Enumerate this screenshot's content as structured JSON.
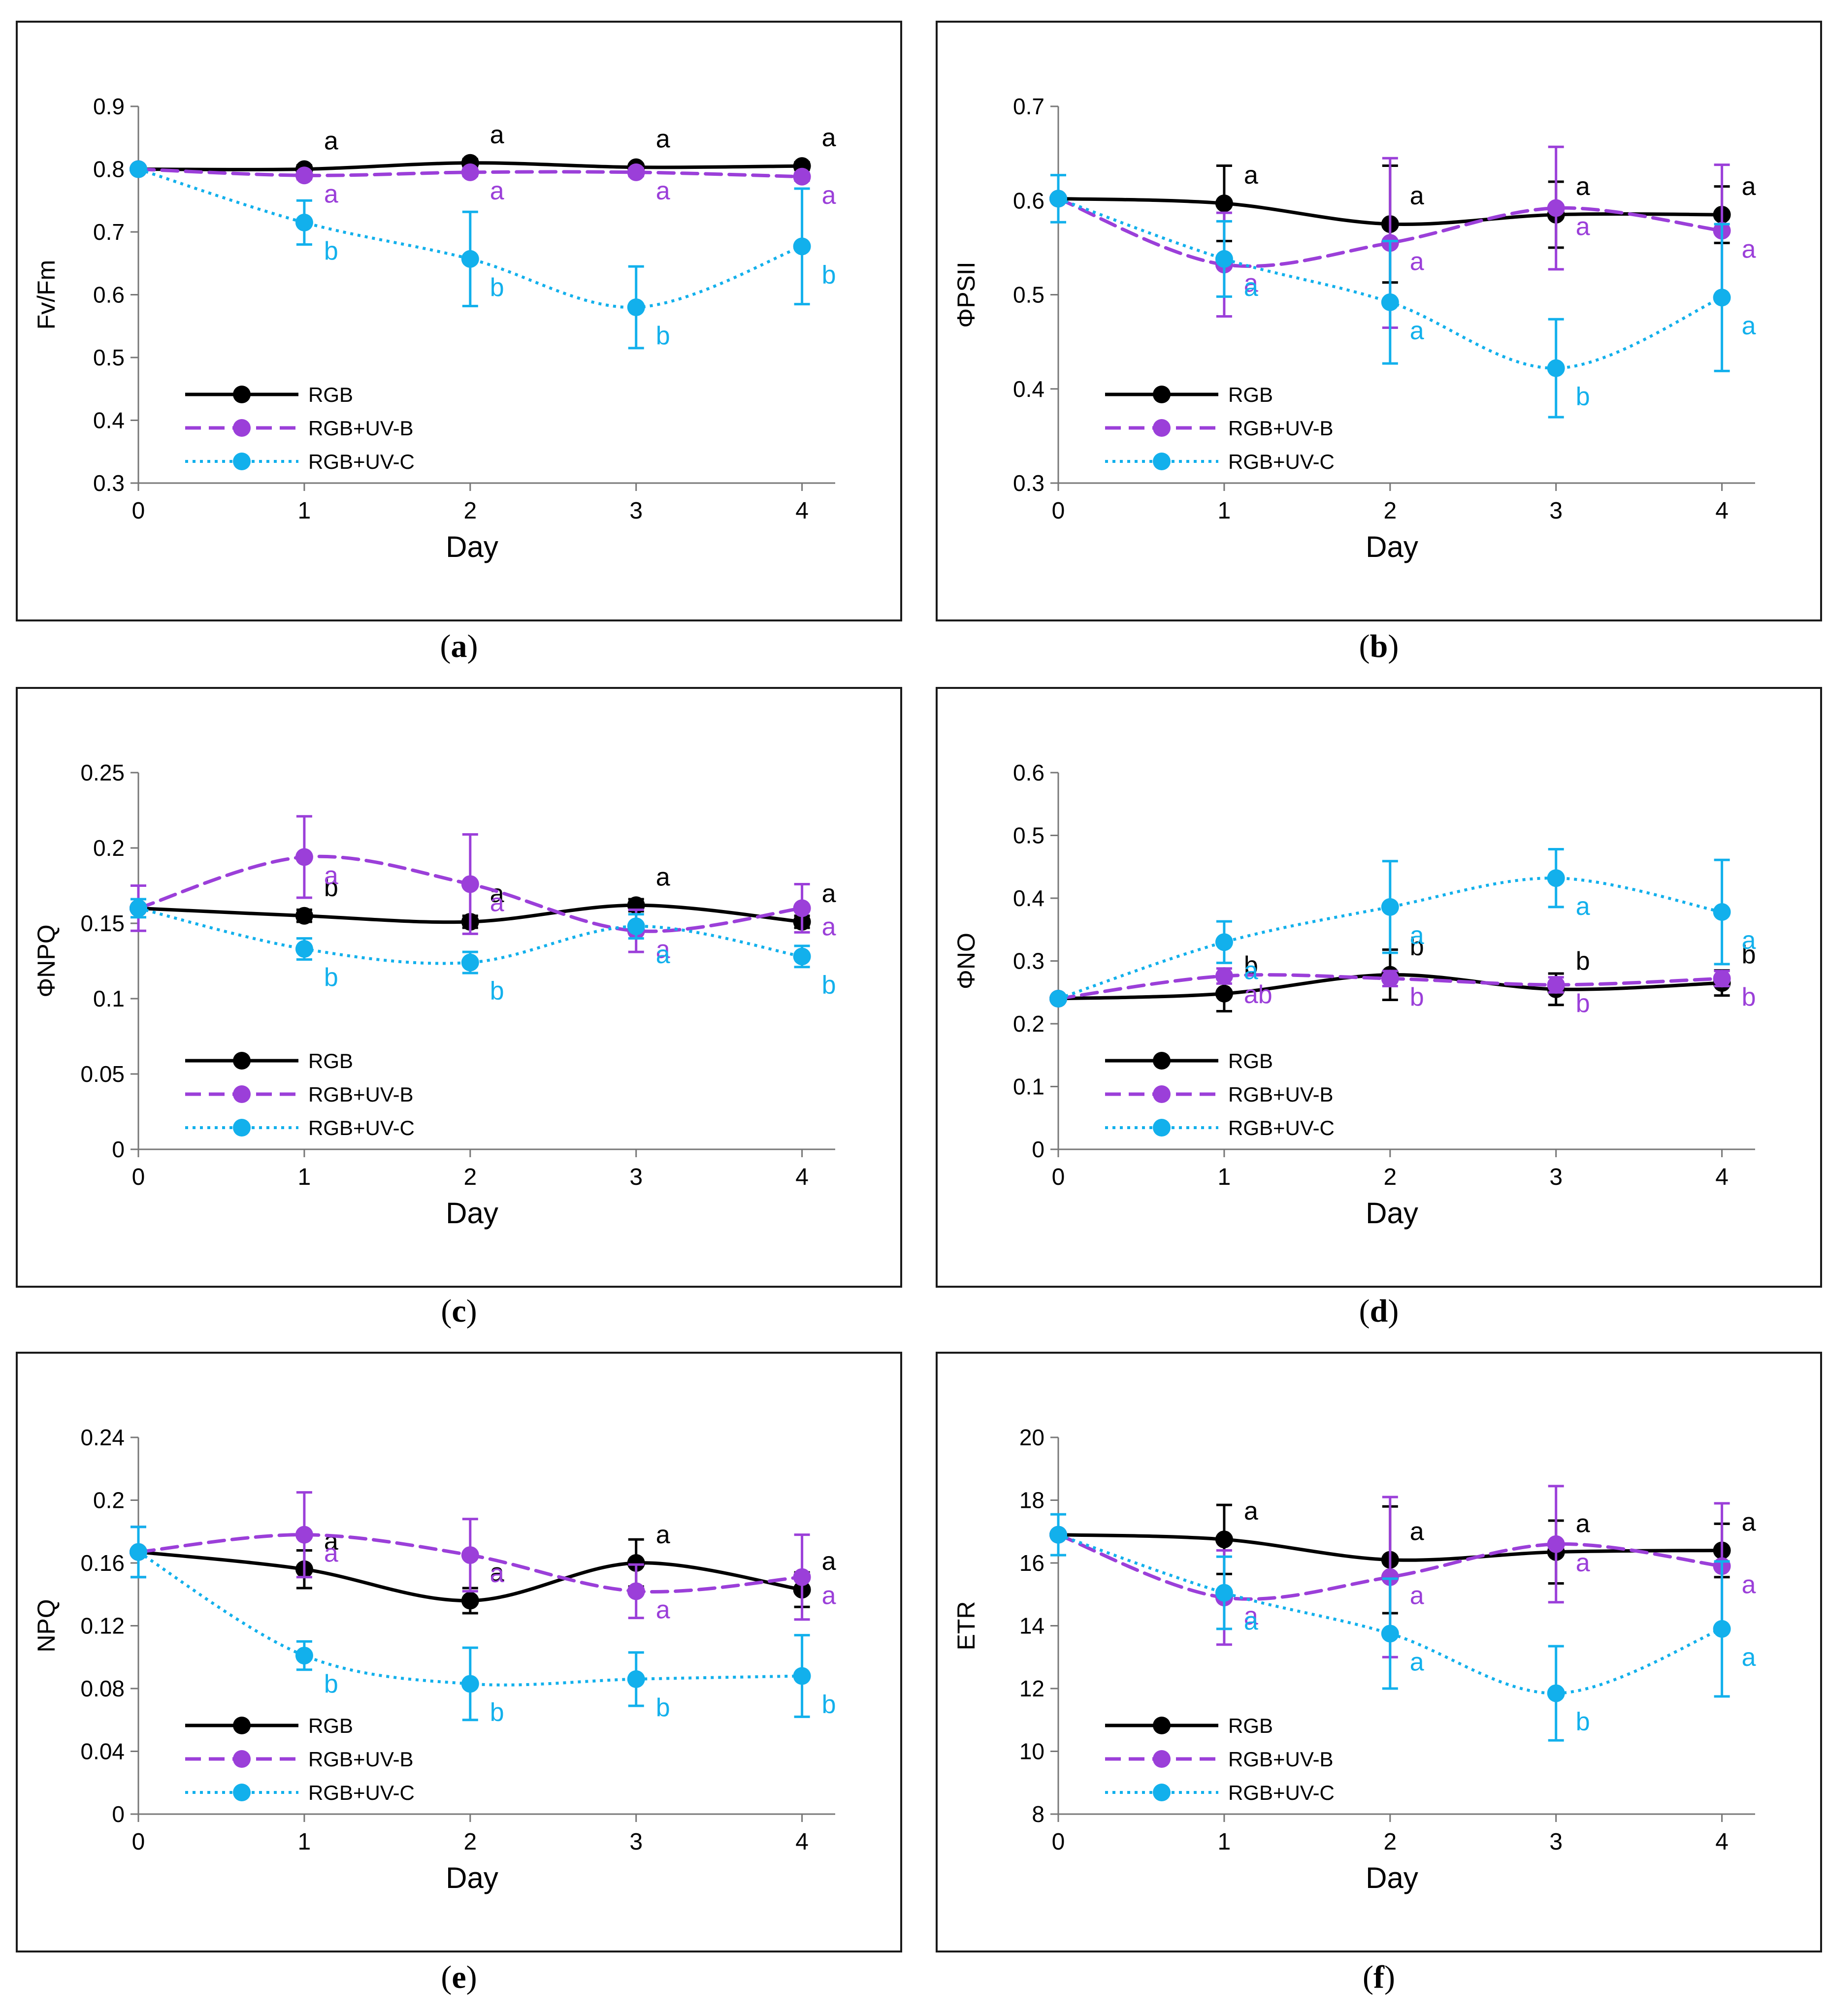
{
  "colors": {
    "rgb": "#000000",
    "uvb": "#9b3fd9",
    "uvc": "#12b0ec"
  },
  "chart_data": [
    {
      "id": "a",
      "caption_letter": "a",
      "type": "line",
      "ylabel": "Fv/Fm",
      "xlabel": "Day",
      "x": [
        0,
        1,
        2,
        3,
        4
      ],
      "xlim": [
        0,
        4.2
      ],
      "ylim": [
        0.3,
        0.9
      ],
      "yticks": [
        "0.3",
        "0.4",
        "0.5",
        "0.6",
        "0.7",
        "0.8",
        "0.9"
      ],
      "xticks": [
        "0",
        "1",
        "2",
        "3",
        "4"
      ],
      "legend_position": "bottom-left",
      "series": [
        {
          "name": "RGB",
          "style": "solid",
          "color_key": "rgb",
          "values": [
            0.8,
            0.8,
            0.81,
            0.803,
            0.805
          ],
          "errors": [
            0,
            0.006,
            0.006,
            0.005,
            0.006
          ],
          "letters": [
            "",
            "a",
            "a",
            "a",
            "a"
          ]
        },
        {
          "name": "RGB+UV-B",
          "style": "dashed",
          "color_key": "uvb",
          "values": [
            0.8,
            0.79,
            0.795,
            0.795,
            0.788
          ],
          "errors": [
            0,
            0.006,
            0.006,
            0.006,
            0.006
          ],
          "letters": [
            "",
            "a",
            "a",
            "a",
            "a"
          ]
        },
        {
          "name": "RGB+UV-C",
          "style": "dotted",
          "color_key": "uvc",
          "values": [
            0.8,
            0.715,
            0.657,
            0.58,
            0.677
          ],
          "errors": [
            0,
            0.035,
            0.075,
            0.065,
            0.092
          ],
          "letters": [
            "",
            "b",
            "b",
            "b",
            "b"
          ]
        }
      ]
    },
    {
      "id": "b",
      "caption_letter": "b",
      "type": "line",
      "ylabel": "ΦPSII",
      "xlabel": "Day",
      "x": [
        0,
        1,
        2,
        3,
        4
      ],
      "xlim": [
        0,
        4.2
      ],
      "ylim": [
        0.3,
        0.7
      ],
      "yticks": [
        "0.3",
        "0.4",
        "0.5",
        "0.6",
        "0.7"
      ],
      "xticks": [
        "0",
        "1",
        "2",
        "3",
        "4"
      ],
      "legend_position": "bottom-left",
      "series": [
        {
          "name": "RGB",
          "style": "solid",
          "color_key": "rgb",
          "values": [
            0.602,
            0.597,
            0.575,
            0.585,
            0.585
          ],
          "errors": [
            0,
            0.04,
            0.062,
            0.035,
            0.03
          ],
          "letters": [
            "",
            "a",
            "a",
            "a",
            "a"
          ]
        },
        {
          "name": "RGB+UV-B",
          "style": "dashed",
          "color_key": "uvb",
          "values": [
            0.602,
            0.532,
            0.555,
            0.592,
            0.568
          ],
          "errors": [
            0,
            0.055,
            0.09,
            0.065,
            0.07
          ],
          "letters": [
            "",
            "a",
            "a",
            "a",
            "a"
          ]
        },
        {
          "name": "RGB+UV-C",
          "style": "dotted",
          "color_key": "uvc",
          "values": [
            0.602,
            0.538,
            0.492,
            0.422,
            0.497
          ],
          "errors": [
            0.025,
            0.04,
            0.065,
            0.052,
            0.078
          ],
          "letters": [
            "",
            "a",
            "a",
            "b",
            "a"
          ]
        }
      ]
    },
    {
      "id": "c",
      "caption_letter": "c",
      "type": "line",
      "ylabel": "ΦNPQ",
      "xlabel": "Day",
      "x": [
        0,
        1,
        2,
        3,
        4
      ],
      "xlim": [
        0,
        4.2
      ],
      "ylim": [
        0,
        0.25
      ],
      "yticks": [
        "0",
        "0.05",
        "0.1",
        "0.15",
        "0.2",
        "0.25"
      ],
      "xticks": [
        "0",
        "1",
        "2",
        "3",
        "4"
      ],
      "legend_position": "bottom-left",
      "series": [
        {
          "name": "RGB",
          "style": "solid",
          "color_key": "rgb",
          "values": [
            0.16,
            0.155,
            0.151,
            0.162,
            0.151
          ],
          "errors": [
            0,
            0.004,
            0.004,
            0.004,
            0.004
          ],
          "letters": [
            "",
            "b",
            "a",
            "a",
            "a"
          ]
        },
        {
          "name": "RGB+UV-B",
          "style": "dashed",
          "color_key": "uvb",
          "values": [
            0.16,
            0.194,
            0.176,
            0.145,
            0.16
          ],
          "errors": [
            0.015,
            0.027,
            0.033,
            0.014,
            0.016
          ],
          "letters": [
            "",
            "a",
            "a",
            "a",
            "a"
          ]
        },
        {
          "name": "RGB+UV-C",
          "style": "dotted",
          "color_key": "uvc",
          "values": [
            0.16,
            0.133,
            0.124,
            0.148,
            0.128
          ],
          "errors": [
            0.006,
            0.007,
            0.007,
            0.008,
            0.007
          ],
          "letters": [
            "",
            "b",
            "b",
            "a",
            "b"
          ]
        }
      ]
    },
    {
      "id": "d",
      "caption_letter": "d",
      "type": "line",
      "ylabel": "ΦNO",
      "xlabel": "Day",
      "x": [
        0,
        1,
        2,
        3,
        4
      ],
      "xlim": [
        0,
        4.2
      ],
      "ylim": [
        0,
        0.6
      ],
      "yticks": [
        "0",
        "0.1",
        "0.2",
        "0.3",
        "0.4",
        "0.5",
        "0.6"
      ],
      "xticks": [
        "0",
        "1",
        "2",
        "3",
        "4"
      ],
      "legend_position": "bottom-left",
      "series": [
        {
          "name": "RGB",
          "style": "solid",
          "color_key": "rgb",
          "values": [
            0.24,
            0.248,
            0.278,
            0.255,
            0.265
          ],
          "errors": [
            0,
            0.028,
            0.04,
            0.025,
            0.02
          ],
          "letters": [
            "",
            "b",
            "b",
            "b",
            "b"
          ]
        },
        {
          "name": "RGB+UV-B",
          "style": "dashed",
          "color_key": "uvb",
          "values": [
            0.24,
            0.276,
            0.272,
            0.262,
            0.272
          ],
          "errors": [
            0,
            0.012,
            0.012,
            0.012,
            0.012
          ],
          "letters": [
            "",
            "ab",
            "b",
            "b",
            "b"
          ]
        },
        {
          "name": "RGB+UV-C",
          "style": "dotted",
          "color_key": "uvc",
          "values": [
            0.24,
            0.33,
            0.386,
            0.432,
            0.378
          ],
          "errors": [
            0,
            0.033,
            0.073,
            0.046,
            0.083
          ],
          "letters": [
            "",
            "a",
            "a",
            "a",
            "a"
          ]
        }
      ]
    },
    {
      "id": "e",
      "caption_letter": "e",
      "type": "line",
      "ylabel": "NPQ",
      "xlabel": "Day",
      "x": [
        0,
        1,
        2,
        3,
        4
      ],
      "xlim": [
        0,
        4.2
      ],
      "ylim": [
        0,
        0.24
      ],
      "yticks": [
        "0",
        "0.04",
        "0.08",
        "0.12",
        "0.16",
        "0.2",
        "0.24"
      ],
      "xticks": [
        "0",
        "1",
        "2",
        "3",
        "4"
      ],
      "legend_position": "bottom-left",
      "series": [
        {
          "name": "RGB",
          "style": "solid",
          "color_key": "rgb",
          "values": [
            0.167,
            0.156,
            0.136,
            0.16,
            0.143
          ],
          "errors": [
            0,
            0.012,
            0.008,
            0.015,
            0.011
          ],
          "letters": [
            "",
            "a",
            "a",
            "a",
            "a"
          ]
        },
        {
          "name": "RGB+UV-B",
          "style": "dashed",
          "color_key": "uvb",
          "values": [
            0.167,
            0.178,
            0.165,
            0.142,
            0.151
          ],
          "errors": [
            0.016,
            0.027,
            0.023,
            0.017,
            0.027
          ],
          "letters": [
            "",
            "a",
            "a",
            "a",
            "a"
          ]
        },
        {
          "name": "RGB+UV-C",
          "style": "dotted",
          "color_key": "uvc",
          "values": [
            0.167,
            0.101,
            0.083,
            0.086,
            0.088
          ],
          "errors": [
            0.016,
            0.009,
            0.023,
            0.017,
            0.026
          ],
          "letters": [
            "",
            "b",
            "b",
            "b",
            "b"
          ]
        }
      ]
    },
    {
      "id": "f",
      "caption_letter": "f",
      "type": "line",
      "ylabel": "ETR",
      "xlabel": "Day",
      "x": [
        0,
        1,
        2,
        3,
        4
      ],
      "xlim": [
        0,
        4.2
      ],
      "ylim": [
        8,
        20
      ],
      "yticks": [
        "8",
        "10",
        "12",
        "14",
        "16",
        "18",
        "20"
      ],
      "xticks": [
        "0",
        "1",
        "2",
        "3",
        "4"
      ],
      "legend_position": "bottom-left",
      "series": [
        {
          "name": "RGB",
          "style": "solid",
          "color_key": "rgb",
          "values": [
            16.9,
            16.75,
            16.1,
            16.35,
            16.4
          ],
          "errors": [
            0,
            1.1,
            1.7,
            1.0,
            0.85
          ],
          "letters": [
            "",
            "a",
            "a",
            "a",
            "a"
          ]
        },
        {
          "name": "RGB+UV-B",
          "style": "dashed",
          "color_key": "uvb",
          "values": [
            16.9,
            14.9,
            15.55,
            16.6,
            15.9
          ],
          "errors": [
            0,
            1.5,
            2.55,
            1.85,
            2.0
          ],
          "letters": [
            "",
            "a",
            "a",
            "a",
            "a"
          ]
        },
        {
          "name": "RGB+UV-C",
          "style": "dotted",
          "color_key": "uvc",
          "values": [
            16.9,
            15.05,
            13.75,
            11.85,
            13.9
          ],
          "errors": [
            0.65,
            1.15,
            1.75,
            1.5,
            2.15
          ],
          "letters": [
            "",
            "a",
            "a",
            "b",
            "a"
          ]
        }
      ]
    }
  ]
}
